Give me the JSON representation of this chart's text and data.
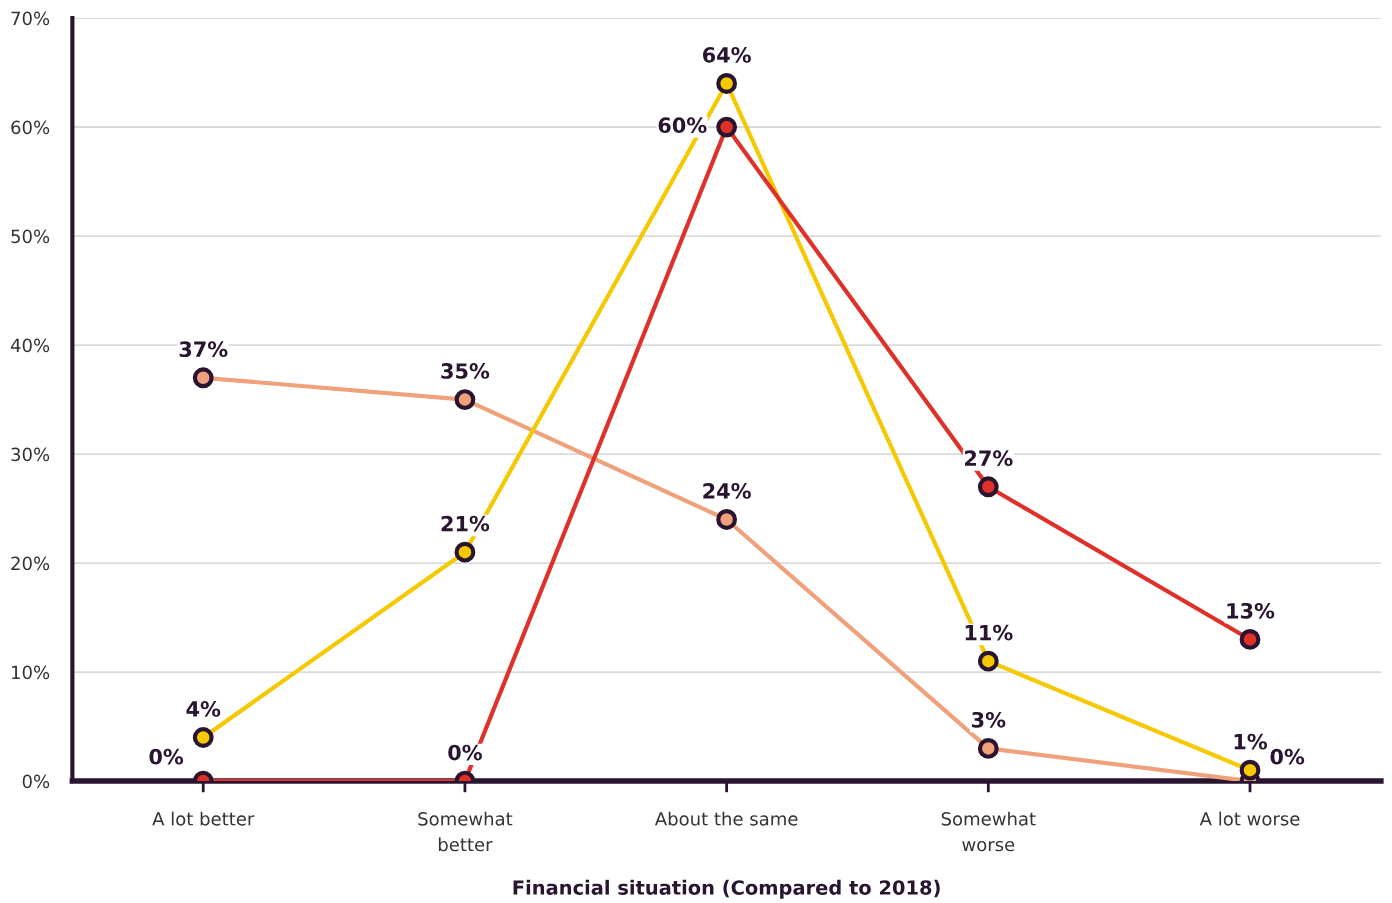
{
  "chart_data": {
    "type": "line",
    "xlabel": "Financial situation (Compared to 2018)",
    "categories": [
      "A lot better",
      "Somewhat\nbetter",
      "About the same",
      "Somewhat\nworse",
      "A lot worse"
    ],
    "series": [
      {
        "color": "#f0a07a",
        "values": [
          37,
          35,
          24,
          3,
          0
        ],
        "value_labels": [
          "37%",
          "35%",
          "24%",
          "3%",
          "0%"
        ]
      },
      {
        "color": "#f5c800",
        "values": [
          4,
          21,
          64,
          11,
          1
        ],
        "value_labels": [
          "4%",
          "21%",
          "64%",
          "11%",
          "1%"
        ]
      },
      {
        "color": "#e0302a",
        "values": [
          0,
          0,
          60,
          27,
          13
        ],
        "value_labels": [
          "0%",
          "0%",
          "60%",
          "27%",
          "13%"
        ]
      }
    ],
    "ylim": [
      0,
      70
    ],
    "yticks": [
      {
        "value": 0,
        "label": "0%"
      },
      {
        "value": 10,
        "label": "10%"
      },
      {
        "value": 20,
        "label": "20%"
      },
      {
        "value": 30,
        "label": "30%"
      },
      {
        "value": 40,
        "label": "40%"
      },
      {
        "value": 50,
        "label": "50%"
      },
      {
        "value": 60,
        "label": "60%"
      },
      {
        "value": 70,
        "label": "70%"
      }
    ],
    "grid": "y",
    "legend": false,
    "marker": "circle",
    "line_style": "solid"
  }
}
